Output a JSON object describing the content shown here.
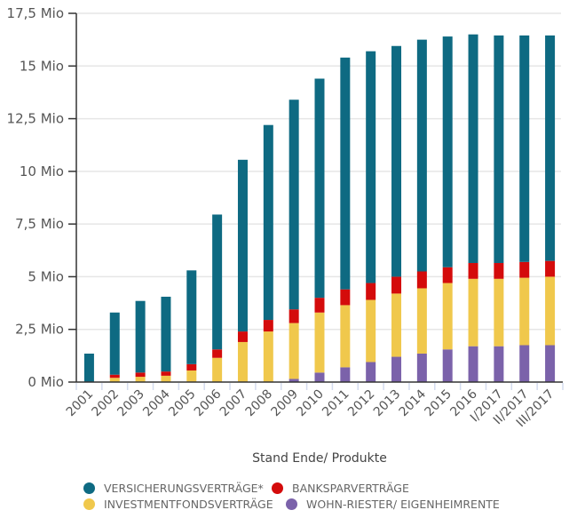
{
  "chart_data": {
    "type": "bar",
    "stacked": true,
    "title": "",
    "xlabel": "Stand Ende/ Produkte",
    "ylabel": "",
    "ylim": [
      0,
      17.5
    ],
    "yticks": [
      0,
      2.5,
      5,
      7.5,
      10,
      12.5,
      15,
      17.5
    ],
    "ytick_labels": [
      "0 Mio",
      "2,5 Mio",
      "5 Mio",
      "7,5 Mio",
      "10 Mio",
      "12,5 Mio",
      "15 Mio",
      "17,5 Mio"
    ],
    "unit": "Mio",
    "grid": true,
    "legend_position": "bottom",
    "categories": [
      "2001",
      "2002",
      "2003",
      "2004",
      "2005",
      "2006",
      "2007",
      "2008",
      "2009",
      "2010",
      "2011",
      "2012",
      "2013",
      "2014",
      "2015",
      "2016",
      "I/2017",
      "II/2017",
      "III/2017"
    ],
    "series": [
      {
        "name": "WOHN-RIESTER/ EIGENHEIMRENTE",
        "color": "#7b62aa",
        "values": [
          0,
          0,
          0,
          0,
          0,
          0,
          0,
          0,
          0.15,
          0.45,
          0.7,
          0.95,
          1.2,
          1.35,
          1.55,
          1.7,
          1.7,
          1.75,
          1.75
        ]
      },
      {
        "name": "INVESTMENTFONDSVERTRÄGE",
        "color": "#f0c84c",
        "values": [
          0,
          0.2,
          0.25,
          0.3,
          0.55,
          1.15,
          1.9,
          2.4,
          2.65,
          2.85,
          2.95,
          2.95,
          3.0,
          3.1,
          3.15,
          3.2,
          3.2,
          3.2,
          3.25
        ]
      },
      {
        "name": "BANKSPARVERTRÄGE",
        "color": "#d40b0b",
        "values": [
          0,
          0.15,
          0.2,
          0.2,
          0.3,
          0.4,
          0.5,
          0.55,
          0.65,
          0.7,
          0.75,
          0.8,
          0.8,
          0.8,
          0.75,
          0.75,
          0.75,
          0.75,
          0.75
        ]
      },
      {
        "name": "VERSICHERUNGSVERTRÄGE*",
        "color": "#0e6a82",
        "values": [
          1.35,
          2.95,
          3.4,
          3.55,
          4.45,
          6.4,
          8.15,
          9.25,
          9.95,
          10.4,
          11.0,
          11.0,
          10.95,
          11.0,
          10.95,
          10.85,
          10.8,
          10.75,
          10.7
        ]
      }
    ]
  },
  "legend": [
    {
      "label": "VERSICHERUNGSVERTRÄGE*",
      "color": "#0e6a82"
    },
    {
      "label": "BANKSPARVERTRÄGE",
      "color": "#d40b0b"
    },
    {
      "label": "INVESTMENTFONDSVERTRÄGE",
      "color": "#f0c84c"
    },
    {
      "label": "WOHN-RIESTER/ EIGENHEIMRENTE",
      "color": "#7b62aa"
    }
  ]
}
